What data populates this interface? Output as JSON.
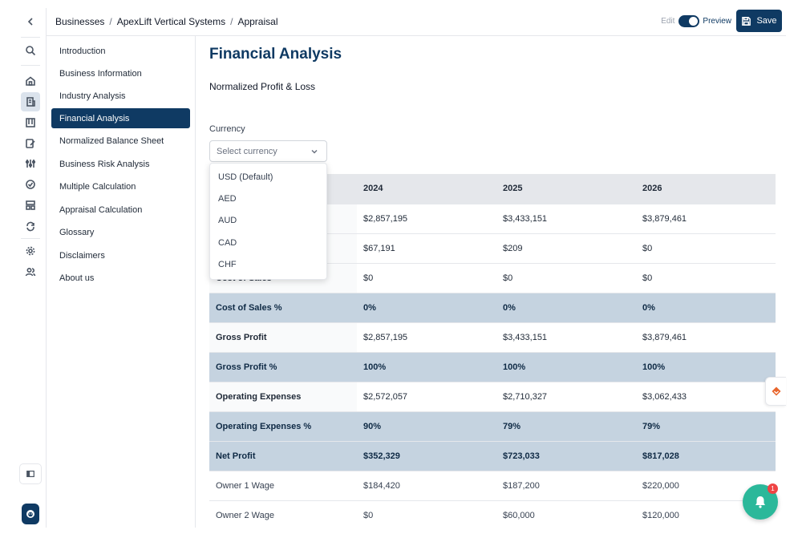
{
  "breadcrumb": [
    "Businesses",
    "ApexLift Vertical Systems",
    "Appraisal"
  ],
  "topbar": {
    "edit_label": "Edit",
    "preview_label": "Preview",
    "save_label": "Save",
    "mode": "preview"
  },
  "nav": {
    "items": [
      {
        "label": "Introduction"
      },
      {
        "label": "Business Information"
      },
      {
        "label": "Industry Analysis"
      },
      {
        "label": "Financial Analysis",
        "active": true
      },
      {
        "label": "Normalized Balance Sheet"
      },
      {
        "label": "Business Risk Analysis"
      },
      {
        "label": "Multiple Calculation"
      },
      {
        "label": "Appraisal Calculation"
      },
      {
        "label": "Glossary"
      },
      {
        "label": "Disclaimers"
      },
      {
        "label": "About us"
      }
    ]
  },
  "page": {
    "title": "Financial Analysis",
    "subtitle": "Normalized Profit & Loss",
    "currency_label": "Currency",
    "currency_placeholder": "Select currency",
    "currency_options": [
      "USD (Default)",
      "AED",
      "AUD",
      "CAD",
      "CHF"
    ]
  },
  "table": {
    "headers": [
      "",
      "2024",
      "2025",
      "2026"
    ],
    "rows": [
      {
        "label": "",
        "values": [
          "$2,857,195",
          "$3,433,151",
          "$3,879,461"
        ],
        "style": "normal"
      },
      {
        "label": "",
        "values": [
          "$67,191",
          "$209",
          "$0"
        ],
        "style": "normal"
      },
      {
        "label": "Cost of Sales",
        "values": [
          "$0",
          "$0",
          "$0"
        ],
        "style": "normal"
      },
      {
        "label": "Cost of Sales %",
        "values": [
          "0%",
          "0%",
          "0%"
        ],
        "style": "highlight"
      },
      {
        "label": "Gross Profit",
        "values": [
          "$2,857,195",
          "$3,433,151",
          "$3,879,461"
        ],
        "style": "normal"
      },
      {
        "label": "Gross Profit %",
        "values": [
          "100%",
          "100%",
          "100%"
        ],
        "style": "highlight"
      },
      {
        "label": "Operating Expenses",
        "values": [
          "$2,572,057",
          "$2,710,327",
          "$3,062,433"
        ],
        "style": "normal"
      },
      {
        "label": "Operating Expenses %",
        "values": [
          "90%",
          "79%",
          "79%"
        ],
        "style": "highlight"
      },
      {
        "label": "Net Profit",
        "values": [
          "$352,329",
          "$723,033",
          "$817,028"
        ],
        "style": "highlight"
      },
      {
        "label": "Owner 1 Wage",
        "values": [
          "$184,420",
          "$187,200",
          "$220,000"
        ],
        "style": "plain"
      },
      {
        "label": "Owner 2 Wage",
        "values": [
          "$0",
          "$60,000",
          "$120,000"
        ],
        "style": "plain"
      }
    ]
  },
  "notifications": {
    "count": "1"
  },
  "colors": {
    "primary": "#0f3a63",
    "highlight_row": "#c5d3e0",
    "bell": "#2bb89a",
    "badge": "#ef4444"
  }
}
